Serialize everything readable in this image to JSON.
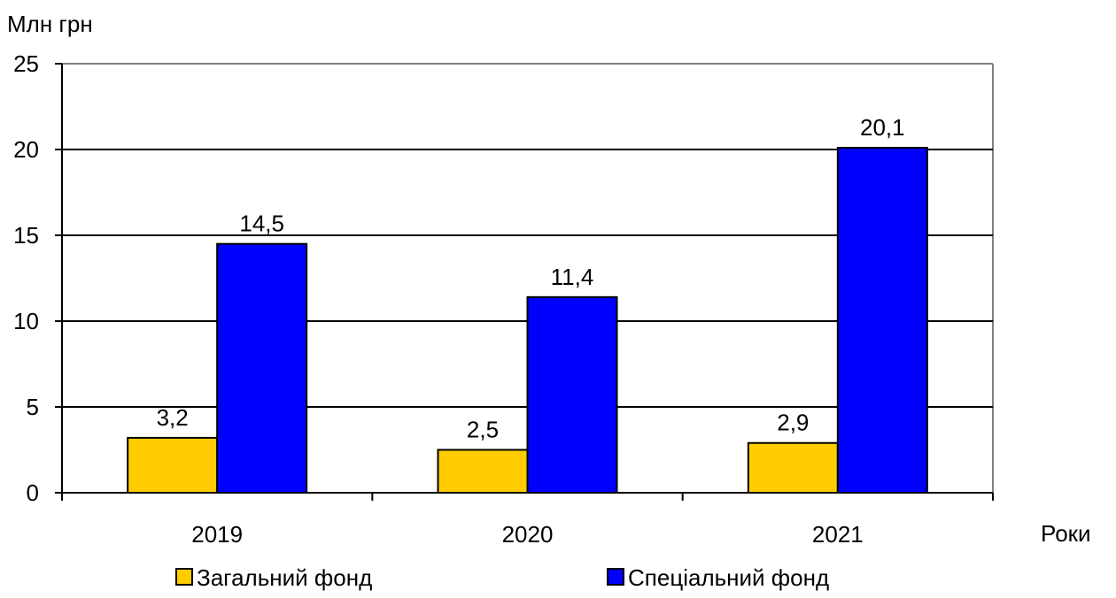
{
  "chart_data": {
    "type": "bar",
    "title": "",
    "ylabel": "Млн грн",
    "xlabel": "Роки",
    "categories": [
      "2019",
      "2020",
      "2021"
    ],
    "series": [
      {
        "name": "Загальний фонд",
        "values": [
          3.2,
          2.5,
          2.9
        ],
        "labels": [
          "3,2",
          "2,5",
          "2,9"
        ],
        "color": "#FFCC00"
      },
      {
        "name": "Спеціальний фонд",
        "values": [
          14.5,
          11.4,
          20.1
        ],
        "labels": [
          "14,5",
          "11,4",
          "20,1"
        ],
        "color": "#0000FF"
      }
    ],
    "ylim": [
      0,
      25
    ],
    "yticks": [
      0,
      5,
      10,
      15,
      20,
      25
    ],
    "grid": true,
    "legend_position": "bottom"
  }
}
